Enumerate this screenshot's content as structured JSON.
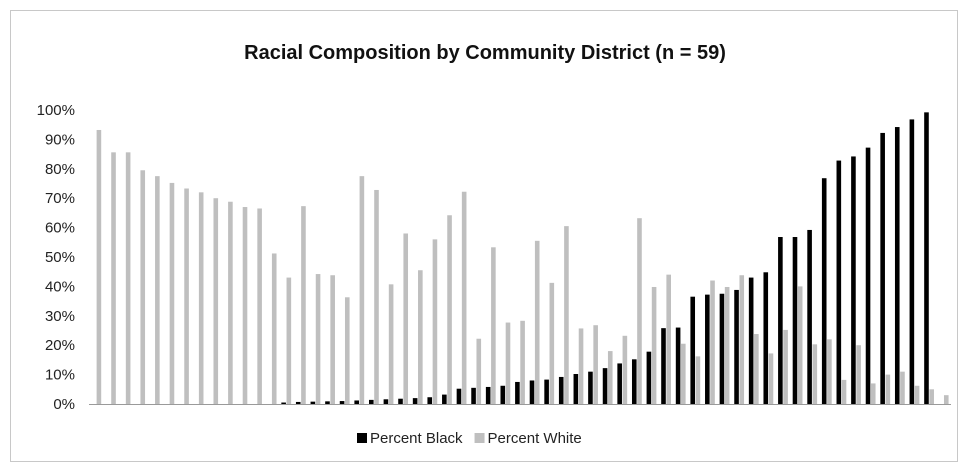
{
  "chart_data": {
    "type": "bar",
    "title": "Racial Composition by Community District (n = 59)",
    "xlabel": "",
    "ylabel": "",
    "ylim": [
      0,
      100
    ],
    "y_ticks": [
      "0%",
      "10%",
      "20%",
      "30%",
      "40%",
      "50%",
      "60%",
      "70%",
      "80%",
      "90%",
      "100%"
    ],
    "grid": false,
    "legend_position": "bottom",
    "categories_count": 59,
    "series": [
      {
        "name": "Percent Black",
        "color": "#000000",
        "values": [
          0,
          0,
          0,
          0,
          0,
          0,
          0,
          0,
          0,
          0,
          0,
          0,
          0,
          0.5,
          0.7,
          0.8,
          0.9,
          1.0,
          1.2,
          1.4,
          1.6,
          1.8,
          2.0,
          2.3,
          3.2,
          5.2,
          5.5,
          5.8,
          6.2,
          7.5,
          8.0,
          8.3,
          9.2,
          10.2,
          11.0,
          12.2,
          13.8,
          15.2,
          17.8,
          25.8,
          26.0,
          36.5,
          37.2,
          37.5,
          38.8,
          43.0,
          44.8,
          56.8,
          56.8,
          59.2,
          76.8,
          82.8,
          84.2,
          87.2,
          92.2,
          94.2,
          96.8,
          99.2,
          0
        ]
      },
      {
        "name": "Percent White",
        "color": "#bfbfbf",
        "values": [
          93.2,
          85.6,
          85.6,
          79.5,
          77.5,
          75.2,
          73.3,
          72.0,
          70.0,
          68.8,
          67.0,
          66.5,
          51.2,
          43.0,
          67.3,
          44.2,
          43.8,
          36.3,
          77.5,
          72.8,
          40.7,
          58.0,
          45.5,
          56.0,
          64.2,
          72.2,
          22.2,
          53.3,
          27.7,
          28.3,
          55.5,
          41.2,
          60.5,
          25.7,
          26.8,
          18.0,
          23.2,
          63.2,
          39.8,
          44.0,
          20.5,
          16.2,
          42.0,
          39.8,
          43.8,
          23.8,
          17.2,
          25.2,
          40.0,
          20.3,
          22.0,
          8.2,
          20.0,
          7.0,
          10.0,
          11.0,
          6.2,
          5.0,
          3.0
        ]
      }
    ]
  }
}
